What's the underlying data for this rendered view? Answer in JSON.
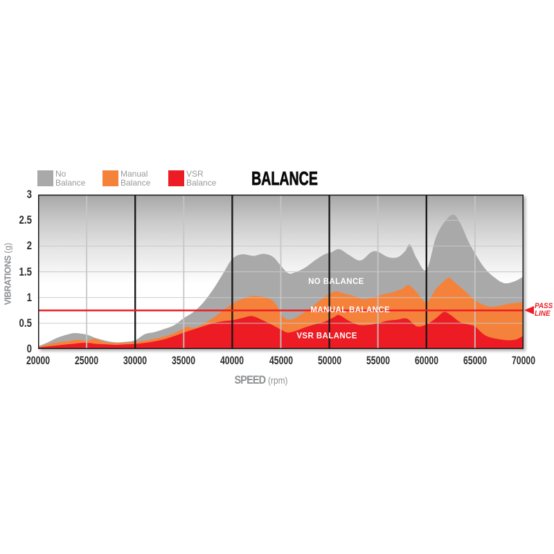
{
  "title": "BALANCE",
  "legend": [
    {
      "label_line1": "No",
      "label_line2": "Balance",
      "color": "#a9a9a9",
      "x": 54
    },
    {
      "label_line1": "Manual",
      "label_line2": "Balance",
      "color": "#f5823a",
      "x": 148
    },
    {
      "label_line1": "VSR",
      "label_line2": "Balance",
      "color": "#ed1c24",
      "x": 243
    }
  ],
  "pass_line": {
    "value": 0.75,
    "label_line1": "PASS",
    "label_line2": "LINE",
    "color": "#ed1c24"
  },
  "axes": {
    "x": {
      "label_bold": "SPEED",
      "label_normal": "(rpm)",
      "min": 20000,
      "max": 70000,
      "ticks": [
        20000,
        25000,
        30000,
        35000,
        40000,
        45000,
        50000,
        55000,
        60000,
        65000,
        70000
      ]
    },
    "y": {
      "label_bold": "VIBRATIONS",
      "label_normal": "(g)",
      "min": 0,
      "max": 3,
      "ticks": [
        0,
        0.5,
        1,
        1.5,
        2,
        2.5,
        3
      ]
    }
  },
  "chart_data": {
    "type": "area",
    "title": "BALANCE",
    "xlabel": "SPEED (rpm)",
    "ylabel": "VIBRATIONS (g)",
    "xlim": [
      20000,
      70000
    ],
    "ylim": [
      0,
      3
    ],
    "grid": true,
    "legend_position": "top-left",
    "background_gradient": [
      "#a7a7a7",
      "#c9c9c9",
      "#e3e3e3",
      "#f6f6f6",
      "#ffffff"
    ],
    "gridlines": {
      "h_values": [
        0.5,
        1,
        1.5,
        2,
        2.5
      ],
      "v_light": [
        25000,
        35000,
        45000,
        55000,
        65000
      ],
      "v_dark": [
        30000,
        40000,
        50000,
        60000
      ]
    },
    "pass_line_value": 0.75,
    "series": [
      {
        "name": "No Balance",
        "color": "#a9a9a9",
        "points": [
          [
            20000,
            0.05
          ],
          [
            21000,
            0.13
          ],
          [
            22000,
            0.22
          ],
          [
            23000,
            0.28
          ],
          [
            23800,
            0.31
          ],
          [
            25000,
            0.28
          ],
          [
            26000,
            0.21
          ],
          [
            27000,
            0.16
          ],
          [
            28000,
            0.13
          ],
          [
            29000,
            0.14
          ],
          [
            30000,
            0.17
          ],
          [
            31000,
            0.29
          ],
          [
            32000,
            0.33
          ],
          [
            33000,
            0.39
          ],
          [
            34000,
            0.46
          ],
          [
            35000,
            0.6
          ],
          [
            36000,
            0.72
          ],
          [
            37000,
            0.9
          ],
          [
            38000,
            1.15
          ],
          [
            39000,
            1.45
          ],
          [
            40000,
            1.75
          ],
          [
            41000,
            1.84
          ],
          [
            42200,
            1.81
          ],
          [
            43200,
            1.85
          ],
          [
            44200,
            1.79
          ],
          [
            45000,
            1.62
          ],
          [
            45800,
            1.47
          ],
          [
            46600,
            1.5
          ],
          [
            47500,
            1.58
          ],
          [
            48500,
            1.72
          ],
          [
            49500,
            1.84
          ],
          [
            50200,
            1.88
          ],
          [
            51000,
            1.94
          ],
          [
            52000,
            1.83
          ],
          [
            53200,
            1.72
          ],
          [
            54300,
            1.88
          ],
          [
            55000,
            1.89
          ],
          [
            56000,
            1.79
          ],
          [
            57000,
            1.78
          ],
          [
            57800,
            1.9
          ],
          [
            58300,
            2.03
          ],
          [
            59000,
            1.76
          ],
          [
            60000,
            1.54
          ],
          [
            61000,
            2.18
          ],
          [
            62000,
            2.5
          ],
          [
            62800,
            2.61
          ],
          [
            63500,
            2.44
          ],
          [
            64300,
            2.1
          ],
          [
            65000,
            1.86
          ],
          [
            66000,
            1.57
          ],
          [
            67000,
            1.39
          ],
          [
            68000,
            1.28
          ],
          [
            69000,
            1.31
          ],
          [
            70000,
            1.41
          ]
        ]
      },
      {
        "name": "Manual Balance",
        "color": "#f5823a",
        "points": [
          [
            20000,
            0.04
          ],
          [
            21000,
            0.09
          ],
          [
            22000,
            0.13
          ],
          [
            23000,
            0.15
          ],
          [
            24000,
            0.18
          ],
          [
            25000,
            0.16
          ],
          [
            25800,
            0.2
          ],
          [
            26600,
            0.15
          ],
          [
            27500,
            0.12
          ],
          [
            28500,
            0.12
          ],
          [
            29500,
            0.13
          ],
          [
            30500,
            0.15
          ],
          [
            31500,
            0.18
          ],
          [
            32500,
            0.22
          ],
          [
            33500,
            0.27
          ],
          [
            34500,
            0.35
          ],
          [
            35300,
            0.43
          ],
          [
            36000,
            0.41
          ],
          [
            36800,
            0.46
          ],
          [
            38000,
            0.6
          ],
          [
            39000,
            0.74
          ],
          [
            40000,
            0.88
          ],
          [
            41000,
            0.97
          ],
          [
            42000,
            1.03
          ],
          [
            43000,
            1.02
          ],
          [
            44000,
            0.96
          ],
          [
            44600,
            0.84
          ],
          [
            45200,
            0.63
          ],
          [
            46000,
            0.57
          ],
          [
            47000,
            0.66
          ],
          [
            48000,
            0.79
          ],
          [
            49000,
            0.94
          ],
          [
            50000,
            1.07
          ],
          [
            50700,
            1.12
          ],
          [
            51500,
            1.08
          ],
          [
            52500,
            1.03
          ],
          [
            53500,
            0.97
          ],
          [
            54500,
            1.0
          ],
          [
            55500,
            1.06
          ],
          [
            56500,
            1.1
          ],
          [
            57500,
            1.17
          ],
          [
            58200,
            1.24
          ],
          [
            59000,
            1.1
          ],
          [
            60000,
            0.91
          ],
          [
            61000,
            1.17
          ],
          [
            62000,
            1.35
          ],
          [
            62400,
            1.38
          ],
          [
            63000,
            1.28
          ],
          [
            64000,
            1.12
          ],
          [
            65000,
            0.95
          ],
          [
            66000,
            0.85
          ],
          [
            66700,
            0.82
          ],
          [
            67500,
            0.84
          ],
          [
            68500,
            0.88
          ],
          [
            70000,
            0.91
          ]
        ]
      },
      {
        "name": "VSR Balance",
        "color": "#ed1c24",
        "points": [
          [
            20000,
            0.03
          ],
          [
            21000,
            0.05
          ],
          [
            22000,
            0.07
          ],
          [
            23000,
            0.09
          ],
          [
            24000,
            0.11
          ],
          [
            25000,
            0.12
          ],
          [
            26000,
            0.1
          ],
          [
            27000,
            0.09
          ],
          [
            28000,
            0.08
          ],
          [
            29000,
            0.09
          ],
          [
            30000,
            0.1
          ],
          [
            31000,
            0.12
          ],
          [
            32000,
            0.15
          ],
          [
            33000,
            0.19
          ],
          [
            34000,
            0.25
          ],
          [
            35000,
            0.32
          ],
          [
            36000,
            0.38
          ],
          [
            37000,
            0.44
          ],
          [
            38000,
            0.5
          ],
          [
            39000,
            0.54
          ],
          [
            40000,
            0.56
          ],
          [
            41000,
            0.6
          ],
          [
            42000,
            0.64
          ],
          [
            43000,
            0.57
          ],
          [
            44000,
            0.48
          ],
          [
            45000,
            0.38
          ],
          [
            45700,
            0.32
          ],
          [
            46500,
            0.35
          ],
          [
            47500,
            0.42
          ],
          [
            48500,
            0.48
          ],
          [
            49500,
            0.53
          ],
          [
            50500,
            0.62
          ],
          [
            51000,
            0.66
          ],
          [
            52000,
            0.55
          ],
          [
            53000,
            0.47
          ],
          [
            54000,
            0.47
          ],
          [
            55000,
            0.5
          ],
          [
            56000,
            0.55
          ],
          [
            57000,
            0.57
          ],
          [
            58000,
            0.59
          ],
          [
            59000,
            0.44
          ],
          [
            60000,
            0.48
          ],
          [
            61000,
            0.6
          ],
          [
            61800,
            0.72
          ],
          [
            62500,
            0.66
          ],
          [
            63500,
            0.52
          ],
          [
            64500,
            0.47
          ],
          [
            65000,
            0.44
          ],
          [
            65800,
            0.3
          ],
          [
            66500,
            0.23
          ],
          [
            67500,
            0.19
          ],
          [
            68500,
            0.17
          ],
          [
            69300,
            0.19
          ],
          [
            70000,
            0.26
          ]
        ]
      }
    ],
    "annotations": [
      {
        "label": "NO BALANCE",
        "rpm": 50700,
        "g": 1.32
      },
      {
        "label": "MANUAL BALANCE",
        "rpm": 52150,
        "g": 0.77
      },
      {
        "label": "VSR BALANCE",
        "rpm": 49750,
        "g": 0.26
      }
    ]
  }
}
